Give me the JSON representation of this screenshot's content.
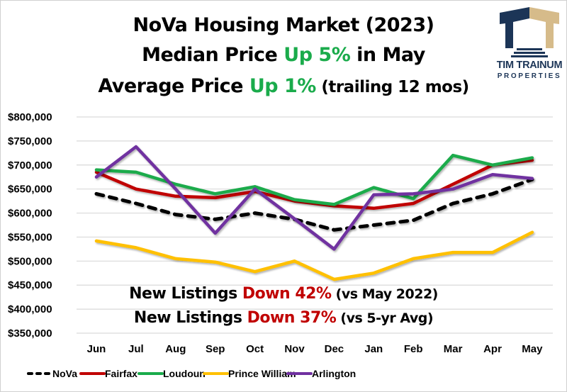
{
  "title": {
    "line1": "NoVa Housing Market (2023)",
    "line2_pre": "Median Price ",
    "line2_hl": "Up 5%",
    "line2_post": " in May",
    "line3_pre": "Average Price ",
    "line3_hl": "Up 1%",
    "line3_post": " (trailing 12 mos)"
  },
  "logo": {
    "name_line1": "TIM TRAINUM",
    "name_line2": "PROPERTIES",
    "colors": {
      "navy": "#1c3557",
      "tan": "#d6bb8a"
    }
  },
  "notes": {
    "line1_pre": "New Listings ",
    "line1_hl": "Down 42%",
    "line1_post": " (vs May 2022)",
    "line2_pre": "New Listings ",
    "line2_hl": "Down 37%",
    "line2_post": " (vs 5-yr Avg)"
  },
  "colors": {
    "up": "#1aab4b",
    "down": "#c00000",
    "grid": "#d9d9d9"
  },
  "chart_data": {
    "type": "line",
    "title": "NoVa Housing Market (2023)",
    "xlabel": "",
    "ylabel": "",
    "categories": [
      "Jun",
      "Jul",
      "Aug",
      "Sep",
      "Oct",
      "Nov",
      "Dec",
      "Jan",
      "Feb",
      "Mar",
      "Apr",
      "May"
    ],
    "ylim": [
      350000,
      800000
    ],
    "yticks": [
      800000,
      750000,
      700000,
      650000,
      600000,
      550000,
      500000,
      450000,
      400000,
      350000
    ],
    "ytick_labels": [
      "$800,000",
      "$750,000",
      "$700,000",
      "$650,000",
      "$600,000",
      "$550,000",
      "$500,000",
      "$450,000",
      "$400,000",
      "$350,000"
    ],
    "grid": true,
    "legend_position": "bottom",
    "series": [
      {
        "name": "NoVa",
        "color": "#000000",
        "dashed": true,
        "values": [
          640000,
          620000,
          597000,
          587000,
          600000,
          587000,
          565000,
          575000,
          585000,
          620000,
          640000,
          670000
        ]
      },
      {
        "name": "Fairfax",
        "color": "#c00000",
        "dashed": false,
        "values": [
          685000,
          650000,
          635000,
          632000,
          645000,
          625000,
          615000,
          610000,
          620000,
          660000,
          700000,
          710000
        ]
      },
      {
        "name": "Loudoun",
        "color": "#1aab4b",
        "dashed": false,
        "values": [
          690000,
          685000,
          660000,
          640000,
          655000,
          628000,
          618000,
          653000,
          630000,
          720000,
          700000,
          715000
        ]
      },
      {
        "name": "Prince William",
        "color": "#ffc000",
        "dashed": false,
        "values": [
          542000,
          528000,
          505000,
          498000,
          478000,
          500000,
          462000,
          475000,
          505000,
          518000,
          518000,
          560000
        ]
      },
      {
        "name": "Arlington",
        "color": "#7030a0",
        "dashed": false,
        "values": [
          675000,
          738000,
          650000,
          558000,
          650000,
          588000,
          525000,
          638000,
          640000,
          650000,
          680000,
          672000
        ]
      }
    ]
  }
}
